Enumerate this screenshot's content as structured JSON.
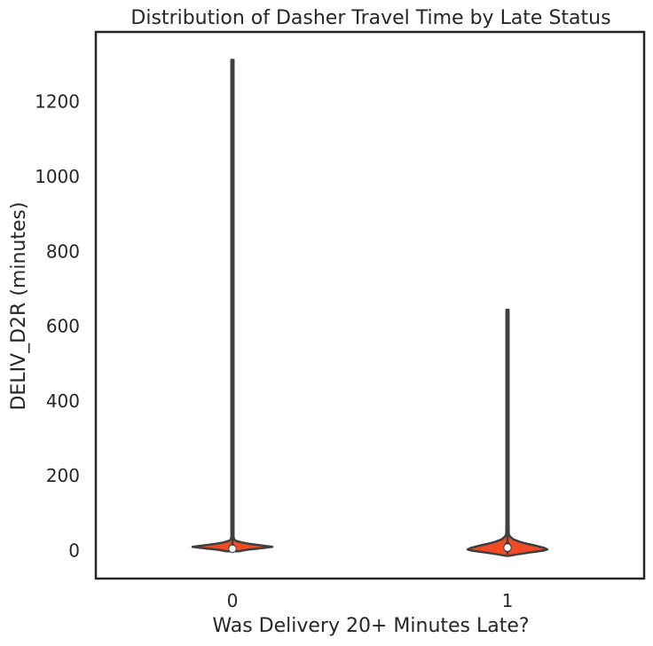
{
  "chart_data": {
    "type": "violin",
    "title": "Distribution of Dasher Travel Time by Late Status",
    "xlabel": "Was Delivery 20+ Minutes Late?",
    "ylabel": "DELIV_D2R (minutes)",
    "categories": [
      "0",
      "1"
    ],
    "ylim": [
      -75,
      1385
    ],
    "yticks": [
      0,
      200,
      400,
      600,
      800,
      1000,
      1200
    ],
    "grid": false,
    "colors": {
      "fill": "#f04b25",
      "edge": "#3f3f3f",
      "frame": "#262626",
      "median": "#ffffff"
    },
    "violins": [
      {
        "category": "0",
        "min": -1,
        "max": 1312,
        "q1": 2,
        "median": 5,
        "q3": 9,
        "profile": [
          [
            -2,
            0.16
          ],
          [
            0,
            0.24
          ],
          [
            3,
            0.42
          ],
          [
            6,
            0.68
          ],
          [
            10,
            1.0
          ],
          [
            14,
            0.72
          ],
          [
            18,
            0.42
          ],
          [
            22,
            0.22
          ],
          [
            26,
            0.09
          ],
          [
            30,
            0.04
          ],
          [
            38,
            0.02
          ],
          [
            60,
            0.012
          ],
          [
            150,
            0.01
          ],
          [
            1312,
            0.01
          ]
        ]
      },
      {
        "category": "1",
        "min": -10,
        "max": 644,
        "q1": 3,
        "median": 8,
        "q3": 15,
        "profile": [
          [
            -14,
            0.04
          ],
          [
            -10,
            0.25
          ],
          [
            -5,
            0.55
          ],
          [
            0,
            0.9
          ],
          [
            3,
            1.0
          ],
          [
            7,
            0.92
          ],
          [
            12,
            0.75
          ],
          [
            18,
            0.5
          ],
          [
            24,
            0.3
          ],
          [
            30,
            0.15
          ],
          [
            38,
            0.06
          ],
          [
            45,
            0.03
          ],
          [
            70,
            0.012
          ],
          [
            150,
            0.01
          ],
          [
            644,
            0.01
          ]
        ]
      }
    ]
  }
}
